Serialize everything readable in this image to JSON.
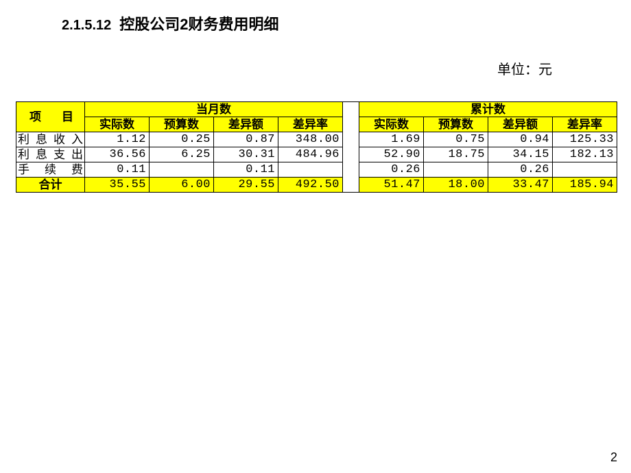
{
  "heading": {
    "section_number": "2.1.5.12",
    "title": "控股公司2财务费用明细"
  },
  "unit_label": "单位：元",
  "table": {
    "header_bg": "#ffff00",
    "border_color": "#000000",
    "item_header": "项目",
    "group_headers": [
      "当月数",
      "累计数"
    ],
    "sub_headers": [
      "实际数",
      "预算数",
      "差异额",
      "差异率"
    ],
    "rows": [
      {
        "name": "利息收入",
        "current": [
          "1.12",
          "0.25",
          "0.87",
          "348.00"
        ],
        "cumulative": [
          "1.69",
          "0.75",
          "0.94",
          "125.33"
        ]
      },
      {
        "name": "利息支出",
        "current": [
          "36.56",
          "6.25",
          "30.31",
          "484.96"
        ],
        "cumulative": [
          "52.90",
          "18.75",
          "34.15",
          "182.13"
        ]
      },
      {
        "name": "手续费",
        "current": [
          "0.11",
          "",
          "0.11",
          ""
        ],
        "cumulative": [
          "0.26",
          "",
          "0.26",
          ""
        ]
      }
    ],
    "total": {
      "name": "合计",
      "current": [
        "35.55",
        "6.00",
        "29.55",
        "492.50"
      ],
      "cumulative": [
        "51.47",
        "18.00",
        "33.47",
        "185.94"
      ]
    }
  },
  "page_number": "2"
}
